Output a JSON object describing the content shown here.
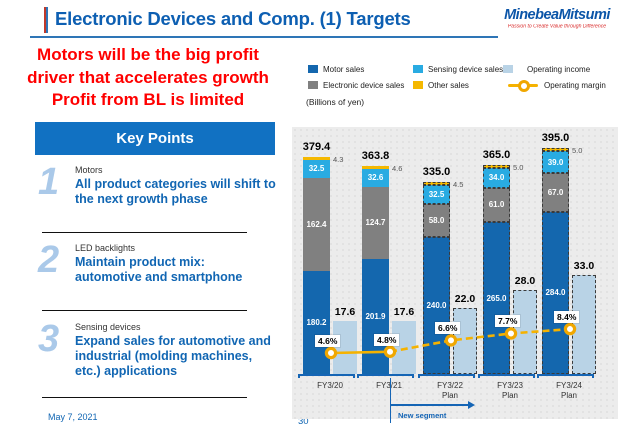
{
  "header": {
    "title": "Electronic Devices and Comp. (1) Targets",
    "logo_name": "MinebeaMitsumi",
    "logo_tagline": "Passion to Create Value through Difference"
  },
  "headline": "Motors will be the big profit\ndriver that accelerates growth\nProfit from BL is limited",
  "key_points": {
    "title": "Key Points",
    "items": [
      {
        "number": "1",
        "topic": "Motors",
        "text": "All product categories will shift to\nthe next growth phase"
      },
      {
        "number": "2",
        "topic": "LED backlights",
        "text": "Maintain product mix:\nautomotive and smartphone"
      },
      {
        "number": "3",
        "topic": "Sensing devices",
        "text": "Expand sales for automotive and\nindustrial (molding machines,\netc.) applications"
      }
    ]
  },
  "footer": {
    "date": "May 7, 2021",
    "page": "30"
  },
  "chart_data": {
    "type": "bar",
    "stacked": true,
    "units_note": "(Billions of yen)",
    "categories": [
      "FY3/20",
      "FY3/21",
      "FY3/22",
      "FY3/23",
      "FY3/24"
    ],
    "plan_flags": [
      false,
      false,
      true,
      true,
      true
    ],
    "plan_suffix": "Plan",
    "series": [
      {
        "name": "Motor sales",
        "color": "#1467ae",
        "values": [
          180.2,
          201.9,
          240.0,
          265.0,
          284.0
        ]
      },
      {
        "name": "Electronic device sales",
        "color": "#808080",
        "values": [
          162.4,
          124.7,
          58.0,
          61.0,
          67.0
        ]
      },
      {
        "name": "Sensing device sales",
        "color": "#29abe2",
        "values": [
          32.5,
          32.6,
          32.5,
          34.0,
          39.0
        ]
      },
      {
        "name": "Other sales",
        "color": "#f5b800",
        "values": [
          4.3,
          4.6,
          4.5,
          5.0,
          5.0
        ]
      }
    ],
    "totals": [
      379.4,
      363.8,
      335.0,
      365.0,
      395.0
    ],
    "operating_income": {
      "name": "Operating income",
      "color": "#b9d3e6",
      "values": [
        17.6,
        17.6,
        22.0,
        28.0,
        33.0
      ]
    },
    "operating_margin": {
      "name": "Operating margin",
      "color": "#f5b200",
      "values_pct": [
        4.6,
        4.8,
        6.6,
        7.7,
        8.4
      ]
    },
    "annotation": "New segment",
    "ylim_note": "no visible y-axis; stacked totals labeled above bars",
    "legend_position": "top"
  }
}
